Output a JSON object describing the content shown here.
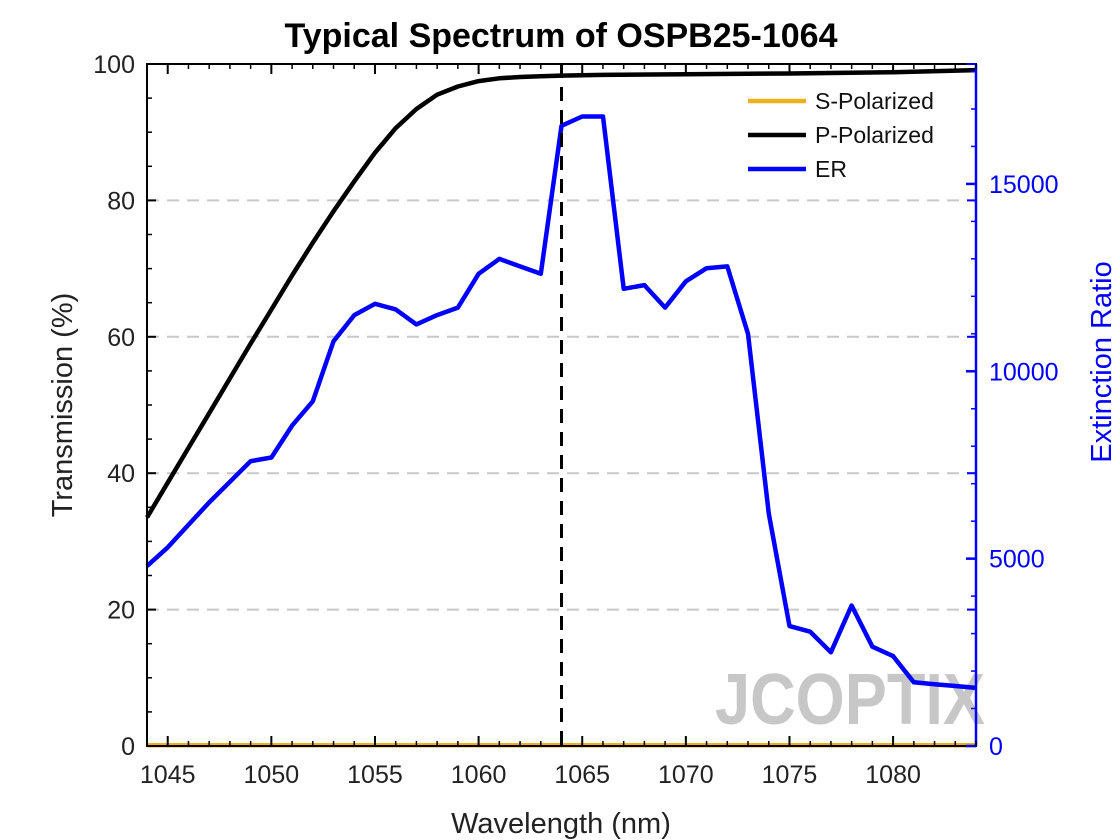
{
  "chart_data": {
    "type": "line",
    "title": "Typical Spectrum of OSPB25-1064",
    "xlabel": "Wavelength (nm)",
    "ylabel": "Transmission (%)",
    "y2label": "Extinction Ratio",
    "xlim": [
      1044,
      1084
    ],
    "ylim": [
      0,
      100
    ],
    "y2lim": [
      0,
      18200
    ],
    "xticks": [
      1045,
      1050,
      1055,
      1060,
      1065,
      1070,
      1075,
      1080
    ],
    "yticks": [
      0,
      20,
      40,
      60,
      80,
      100
    ],
    "y2ticks": [
      0,
      5000,
      10000,
      15000
    ],
    "grid": "horizontal dashed",
    "legend_position": "top-right",
    "vertical_marker_x": 1064,
    "series": [
      {
        "name": "S-Polarized",
        "axis": "left",
        "color": "#EDB120",
        "x": [
          1044,
          1084
        ],
        "y": [
          0.1,
          0.1
        ]
      },
      {
        "name": "P-Polarized",
        "axis": "left",
        "color": "#000000",
        "x": [
          1044,
          1045,
          1046,
          1047,
          1048,
          1049,
          1050,
          1051,
          1052,
          1053,
          1054,
          1055,
          1056,
          1057,
          1058,
          1059,
          1060,
          1061,
          1062,
          1063,
          1064,
          1066,
          1070,
          1075,
          1080,
          1084
        ],
        "y": [
          33.5,
          38.6,
          43.7,
          48.8,
          53.9,
          59,
          64,
          69,
          73.8,
          78.4,
          82.8,
          87,
          90.6,
          93.4,
          95.5,
          96.7,
          97.5,
          97.9,
          98.1,
          98.2,
          98.3,
          98.4,
          98.5,
          98.6,
          98.8,
          99.1
        ]
      },
      {
        "name": "ER",
        "axis": "right",
        "color": "#0000ff",
        "x": [
          1044,
          1045,
          1046,
          1047,
          1048,
          1049,
          1050,
          1051,
          1052,
          1053,
          1054,
          1055,
          1056,
          1057,
          1058,
          1059,
          1060,
          1061,
          1062,
          1063,
          1064,
          1065,
          1066,
          1067,
          1068,
          1069,
          1070,
          1071,
          1072,
          1073,
          1074,
          1075,
          1076,
          1077,
          1078,
          1079,
          1080,
          1081,
          1082,
          1083,
          1084
        ],
        "y": [
          4800,
          5300,
          5900,
          6500,
          7050,
          7600,
          7700,
          8550,
          9200,
          10800,
          11500,
          11800,
          11650,
          11250,
          11500,
          11700,
          12600,
          13000,
          12800,
          12600,
          16550,
          16800,
          16800,
          12200,
          12300,
          11700,
          12400,
          12750,
          12800,
          11000,
          6200,
          3200,
          3050,
          2500,
          3750,
          2650,
          2400,
          1700,
          1650,
          1600,
          1550
        ]
      }
    ]
  },
  "legend": {
    "items": [
      {
        "label": "S-Polarized",
        "color": "#EDB120"
      },
      {
        "label": "P-Polarized",
        "color": "#000000"
      },
      {
        "label": "ER",
        "color": "#0000ff"
      }
    ]
  },
  "watermark": {
    "text": "JCOPTIX"
  }
}
